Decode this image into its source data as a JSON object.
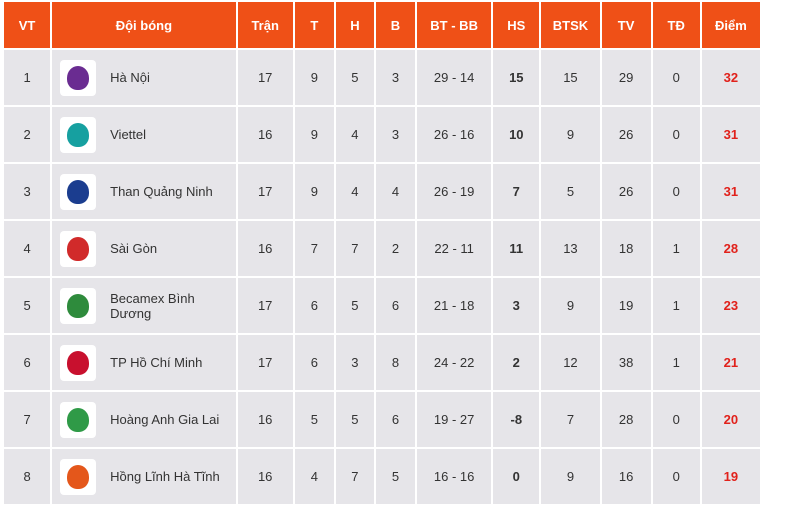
{
  "table": {
    "headers": [
      "VT",
      "Đội bóng",
      "Trận",
      "T",
      "H",
      "B",
      "BT - BB",
      "HS",
      "BTSK",
      "TV",
      "TĐ",
      "Điểm"
    ],
    "rows": [
      [
        1,
        "Hà Nội",
        17,
        9,
        5,
        3,
        "29 - 14",
        15,
        15,
        29,
        0,
        32
      ],
      [
        2,
        "Viettel",
        16,
        9,
        4,
        3,
        "26 - 16",
        10,
        9,
        26,
        0,
        31
      ],
      [
        3,
        "Than Quảng Ninh",
        17,
        9,
        4,
        4,
        "26 - 19",
        7,
        5,
        26,
        0,
        31
      ],
      [
        4,
        "Sài Gòn",
        16,
        7,
        7,
        2,
        "22 - 11",
        11,
        13,
        18,
        1,
        28
      ],
      [
        5,
        "Becamex Bình Dương",
        17,
        6,
        5,
        6,
        "21 - 18",
        3,
        9,
        19,
        1,
        23
      ],
      [
        6,
        "TP Hồ Chí Minh",
        17,
        6,
        3,
        8,
        "24 - 22",
        2,
        12,
        38,
        1,
        21
      ],
      [
        7,
        "Hoàng Anh Gia Lai",
        16,
        5,
        5,
        6,
        "19 - 27",
        -8,
        7,
        28,
        0,
        20
      ],
      [
        8,
        "Hồng Lĩnh Hà Tĩnh",
        16,
        4,
        7,
        5,
        "16 - 16",
        0,
        9,
        16,
        0,
        19
      ]
    ]
  }
}
